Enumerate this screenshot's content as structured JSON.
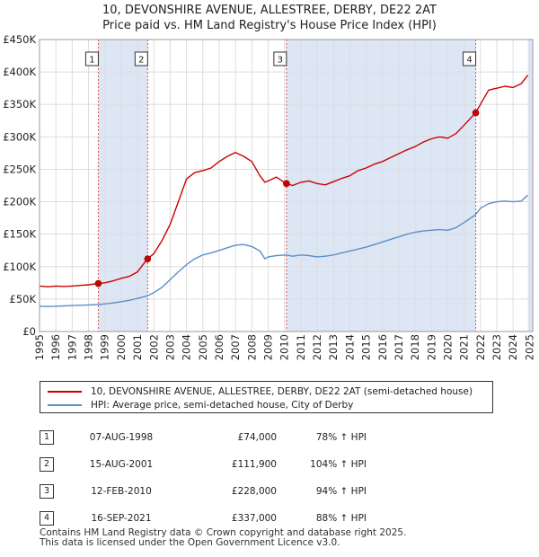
{
  "title_line1": "10, DEVONSHIRE AVENUE, ALLESTREE, DERBY, DE22 2AT",
  "title_line2": "Price paid vs. HM Land Registry's House Price Index (HPI)",
  "legend": {
    "property": "10, DEVONSHIRE AVENUE, ALLESTREE, DERBY, DE22 2AT (semi-detached house)",
    "hpi": "HPI: Average price, semi-detached house, City of Derby"
  },
  "colors": {
    "property": "#cc0000",
    "hpi": "#5b8fc9",
    "band": "#dde6f5",
    "vline": "#e05050"
  },
  "sales": [
    {
      "num": "1",
      "date": "07-AUG-1998",
      "price": "£74,000",
      "hpi": "78% ↑ HPI"
    },
    {
      "num": "2",
      "date": "15-AUG-2001",
      "price": "£111,900",
      "hpi": "104% ↑ HPI"
    },
    {
      "num": "3",
      "date": "12-FEB-2010",
      "price": "£228,000",
      "hpi": "94% ↑ HPI"
    },
    {
      "num": "4",
      "date": "16-SEP-2021",
      "price": "£337,000",
      "hpi": "88% ↑ HPI"
    }
  ],
  "footer_line1": "Contains HM Land Registry data © Crown copyright and database right 2025.",
  "footer_line2": "This data is licensed under the Open Government Licence v3.0.",
  "chart_data": {
    "type": "line",
    "title": "10, DEVONSHIRE AVENUE, ALLESTREE, DERBY, DE22 2AT",
    "subtitle": "Price paid vs. HM Land Registry's House Price Index (HPI)",
    "xlabel": "",
    "ylabel": "",
    "xlim": [
      1995,
      2025.2
    ],
    "ylim": [
      0,
      450000
    ],
    "x_ticks": [
      1995,
      1996,
      1997,
      1998,
      1999,
      2000,
      2001,
      2002,
      2003,
      2004,
      2005,
      2006,
      2007,
      2008,
      2009,
      2010,
      2011,
      2012,
      2013,
      2014,
      2015,
      2016,
      2017,
      2018,
      2019,
      2020,
      2021,
      2022,
      2023,
      2024,
      2025
    ],
    "x_tick_labels": [
      "1995",
      "1996",
      "1997",
      "1998",
      "1999",
      "2000",
      "2001",
      "2002",
      "2003",
      "2004",
      "2005",
      "2006",
      "2007",
      "2008",
      "2009",
      "2010",
      "2011",
      "2012",
      "2013",
      "2014",
      "2015",
      "2016",
      "2017",
      "2018",
      "2019",
      "2020",
      "2021",
      "2022",
      "2023",
      "2024",
      "2025"
    ],
    "y_ticks": [
      0,
      50000,
      100000,
      150000,
      200000,
      250000,
      300000,
      350000,
      400000,
      450000
    ],
    "y_tick_labels": [
      "£0",
      "£50K",
      "£100K",
      "£150K",
      "£200K",
      "£250K",
      "£300K",
      "£350K",
      "£400K",
      "£450K"
    ],
    "grid": true,
    "legend_position": "below",
    "series": [
      {
        "name": "10, DEVONSHIRE AVENUE, ALLESTREE, DERBY, DE22 2AT (semi-detached house)",
        "x": [
          1995.0,
          1995.5,
          1996.0,
          1996.5,
          1997.0,
          1997.5,
          1998.0,
          1998.6,
          1999.0,
          1999.5,
          2000.0,
          2000.5,
          2001.0,
          2001.6,
          2002.0,
          2002.5,
          2003.0,
          2003.5,
          2004.0,
          2004.5,
          2005.0,
          2005.5,
          2006.0,
          2006.5,
          2007.0,
          2007.5,
          2008.0,
          2008.5,
          2008.8,
          2009.0,
          2009.5,
          2010.1,
          2010.5,
          2011.0,
          2011.5,
          2012.0,
          2012.5,
          2013.0,
          2013.5,
          2014.0,
          2014.5,
          2015.0,
          2015.5,
          2016.0,
          2016.5,
          2017.0,
          2017.5,
          2018.0,
          2018.5,
          2019.0,
          2019.5,
          2020.0,
          2020.5,
          2021.0,
          2021.7,
          2022.0,
          2022.5,
          2023.0,
          2023.5,
          2024.0,
          2024.5,
          2024.9
        ],
        "values": [
          70000,
          69000,
          70000,
          69500,
          70000,
          71000,
          72000,
          74000,
          75000,
          78000,
          82000,
          85000,
          92000,
          111900,
          120000,
          140000,
          165000,
          200000,
          235000,
          245000,
          248000,
          252000,
          262000,
          270000,
          276000,
          270000,
          262000,
          240000,
          230000,
          232000,
          238000,
          228000,
          225000,
          230000,
          232000,
          228000,
          226000,
          231000,
          236000,
          240000,
          248000,
          252000,
          258000,
          262000,
          268000,
          274000,
          280000,
          285000,
          292000,
          297000,
          300000,
          298000,
          305000,
          318000,
          337000,
          350000,
          372000,
          375000,
          378000,
          376000,
          382000,
          395000
        ]
      },
      {
        "name": "HPI: Average price, semi-detached house, City of Derby",
        "x": [
          1995.0,
          1995.5,
          1996.0,
          1996.5,
          1997.0,
          1997.5,
          1998.0,
          1998.6,
          1999.0,
          1999.5,
          2000.0,
          2000.5,
          2001.0,
          2001.6,
          2002.0,
          2002.5,
          2003.0,
          2003.5,
          2004.0,
          2004.5,
          2005.0,
          2005.5,
          2006.0,
          2006.5,
          2007.0,
          2007.5,
          2008.0,
          2008.5,
          2008.8,
          2009.0,
          2009.5,
          2010.1,
          2010.5,
          2011.0,
          2011.5,
          2012.0,
          2012.5,
          2013.0,
          2013.5,
          2014.0,
          2014.5,
          2015.0,
          2015.5,
          2016.0,
          2016.5,
          2017.0,
          2017.5,
          2018.0,
          2018.5,
          2019.0,
          2019.5,
          2020.0,
          2020.5,
          2021.0,
          2021.7,
          2022.0,
          2022.5,
          2023.0,
          2023.5,
          2024.0,
          2024.5,
          2024.9
        ],
        "values": [
          39000,
          38500,
          39000,
          39500,
          40000,
          40500,
          41000,
          41500,
          42500,
          44000,
          46000,
          48000,
          51000,
          55000,
          60000,
          68000,
          80000,
          92000,
          103000,
          112000,
          118000,
          121000,
          125000,
          129000,
          133000,
          134000,
          131000,
          124000,
          112000,
          115000,
          117000,
          118000,
          116000,
          118000,
          117000,
          115000,
          116000,
          118000,
          121000,
          124000,
          127000,
          130000,
          134000,
          138000,
          142000,
          146000,
          150000,
          153000,
          155000,
          156000,
          157000,
          156000,
          160000,
          168000,
          180000,
          190000,
          197000,
          200000,
          201000,
          200000,
          201000,
          210000
        ]
      }
    ],
    "sale_markers": [
      {
        "label": "1",
        "x": 1998.6,
        "y": 74000
      },
      {
        "label": "2",
        "x": 2001.62,
        "y": 111900
      },
      {
        "label": "3",
        "x": 2010.12,
        "y": 228000
      },
      {
        "label": "4",
        "x": 2021.71,
        "y": 337000
      }
    ],
    "shaded_ranges": [
      [
        1998.6,
        2001.62
      ],
      [
        2010.12,
        2021.71
      ],
      [
        2024.9,
        2025.2
      ]
    ]
  }
}
